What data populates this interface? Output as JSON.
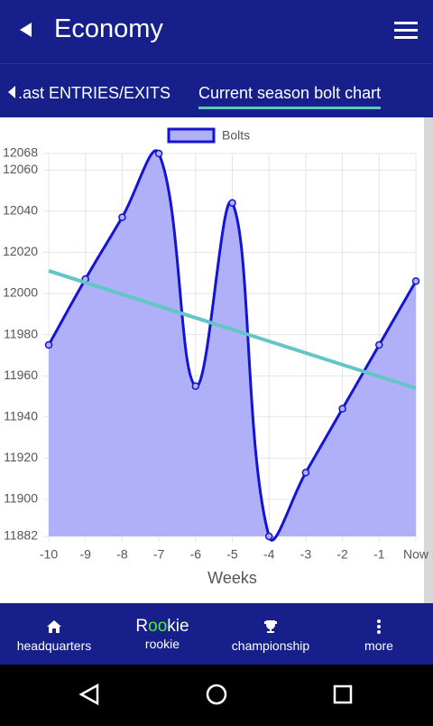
{
  "header": {
    "title": "Economy"
  },
  "tabs": [
    ".ast ENTRIES/EXITS",
    "Current season bolt chart"
  ],
  "chart_data": {
    "type": "area",
    "x_label": "Weeks",
    "categories": [
      "-10",
      "-9",
      "-8",
      "-7",
      "-6",
      "-5",
      "-4",
      "-3",
      "-2",
      "-1",
      "Now"
    ],
    "series": [
      {
        "name": "Bolts",
        "color": "#1414d2",
        "fill": "#b0b0f8",
        "values": [
          11975,
          12007,
          12037,
          12068,
          11955,
          12044,
          11882,
          11913,
          11944,
          11975,
          12006
        ]
      }
    ],
    "trendline": {
      "color": "#62c6c6",
      "values": [
        12011,
        12005.3,
        11999.6,
        11993.9,
        11988.2,
        11982.5,
        11976.8,
        11971.1,
        11965.4,
        11959.7,
        11954
      ]
    },
    "ylim": [
      11882,
      12068
    ],
    "yticks": [
      11882,
      11900,
      11920,
      11940,
      11960,
      11980,
      12000,
      12020,
      12040,
      12060,
      12068
    ],
    "grid": true,
    "legend": "top",
    "smooth": true
  },
  "nav": [
    {
      "label": "headquarters"
    },
    {
      "logo": [
        "R",
        "oo",
        "kie"
      ],
      "label": "rookie"
    },
    {
      "label": "championship"
    },
    {
      "label": "more"
    }
  ]
}
